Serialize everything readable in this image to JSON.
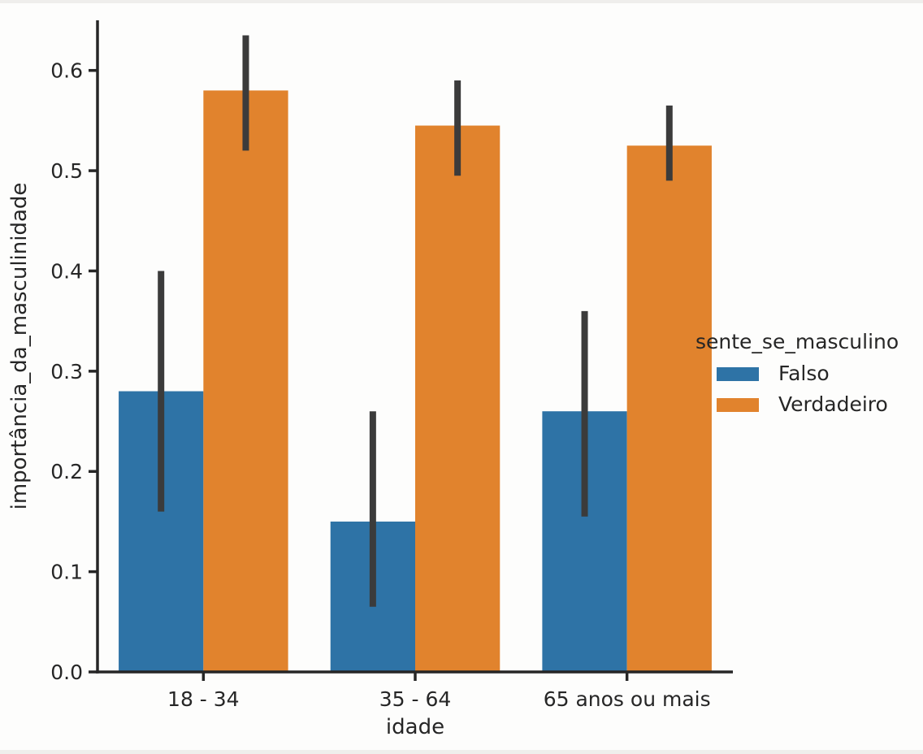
{
  "background": "#fdfdfc",
  "chart_data": {
    "type": "bar",
    "title": "",
    "xlabel": "idade",
    "ylabel": "importância_da_masculinidade",
    "categories": [
      "18 - 34",
      "35 - 64",
      "65 anos ou mais"
    ],
    "series": [
      {
        "name": "Falso",
        "color": "#2e73a6",
        "values": [
          0.28,
          0.15,
          0.26
        ],
        "ci_low": [
          0.16,
          0.065,
          0.155
        ],
        "ci_high": [
          0.4,
          0.26,
          0.36
        ]
      },
      {
        "name": "Verdadeiro",
        "color": "#e1832d",
        "values": [
          0.58,
          0.545,
          0.525
        ],
        "ci_low": [
          0.52,
          0.495,
          0.49
        ],
        "ci_high": [
          0.635,
          0.59,
          0.565
        ]
      }
    ],
    "legend": {
      "title": "sente_se_masculino",
      "position": "center-right"
    },
    "ylim": [
      0,
      0.65
    ],
    "yticks": [
      0.0,
      0.1,
      0.2,
      0.3,
      0.4,
      0.5,
      0.6
    ],
    "ytick_labels": [
      "0.0",
      "0.1",
      "0.2",
      "0.3",
      "0.4",
      "0.5",
      "0.6"
    ],
    "grid": false,
    "error_color": "#3b3b3b",
    "axis_color": "#262626"
  }
}
